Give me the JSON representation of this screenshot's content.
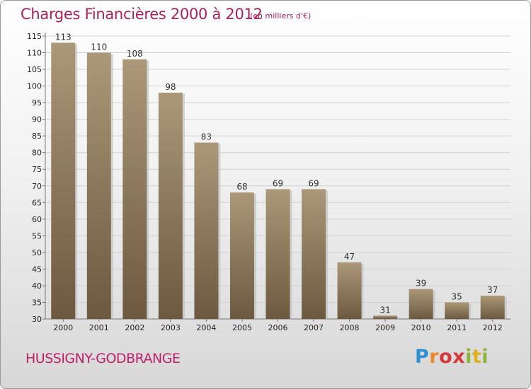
{
  "header": {
    "title": "Charges Financières 2000 à 2012",
    "subtitle": "(en milliers d'€)"
  },
  "footer": {
    "commune": "HUSSIGNY-GODBRANGE",
    "logo": "Proxiti"
  },
  "colors": {
    "title": "#b0205a",
    "bar_light": "#aa9677",
    "bar_dark": "#6e5b41",
    "grid": "#cfcfcf"
  },
  "chart_data": {
    "type": "bar",
    "categories": [
      "2000",
      "2001",
      "2002",
      "2003",
      "2004",
      "2005",
      "2006",
      "2007",
      "2008",
      "2009",
      "2010",
      "2011",
      "2012"
    ],
    "values": [
      113,
      110,
      108,
      98,
      83,
      68,
      69,
      69,
      47,
      31,
      39,
      35,
      37
    ],
    "title": "Charges Financières 2000 à 2012",
    "ylim": [
      30,
      115
    ],
    "yticks": [
      30,
      35,
      40,
      45,
      50,
      55,
      60,
      65,
      70,
      75,
      80,
      85,
      90,
      95,
      100,
      105,
      110,
      115
    ],
    "grid": true
  }
}
